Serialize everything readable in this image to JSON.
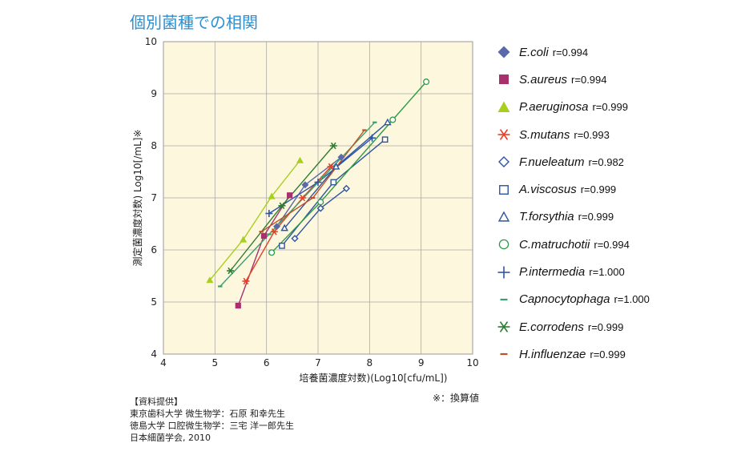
{
  "title": "個別菌種での相関",
  "note": "※：換算値",
  "source": {
    "heading": "【資料提供】",
    "lines": [
      "東京歯科大学 微生物学：石原 和幸先生",
      "徳島大学 口腔微生物学：三宅 洋一郎先生",
      "日本細菌学会, 2010"
    ]
  },
  "chart_data": {
    "type": "scatter",
    "xlabel": "培養菌濃度対数)(Log10[cfu/mL])",
    "ylabel": "測定菌濃度対数) Log10[/mL]※",
    "xlim": [
      4,
      10
    ],
    "ylim": [
      4,
      10
    ],
    "xticks": [
      4,
      5,
      6,
      7,
      8,
      9,
      10
    ],
    "yticks": [
      4,
      5,
      6,
      7,
      8,
      9,
      10
    ],
    "grid": true,
    "legend_position": "right",
    "series": [
      {
        "name": "E.coli",
        "r": "r=0.994",
        "marker": "diamond-filled",
        "color": "#5a6aa8",
        "points": [
          [
            6.2,
            6.45
          ],
          [
            6.75,
            7.25
          ],
          [
            7.45,
            7.78
          ]
        ]
      },
      {
        "name": "S.aureus",
        "r": "r=0.994",
        "marker": "square-filled",
        "color": "#a8306c",
        "points": [
          [
            5.45,
            4.93
          ],
          [
            5.95,
            6.27
          ],
          [
            6.45,
            7.05
          ]
        ]
      },
      {
        "name": "P.aeruginosa",
        "r": "r=0.999",
        "marker": "triangle-filled",
        "color": "#a8cf1d",
        "points": [
          [
            4.9,
            5.42
          ],
          [
            5.55,
            6.2
          ],
          [
            6.1,
            7.03
          ],
          [
            6.65,
            7.72
          ]
        ]
      },
      {
        "name": "S.mutans",
        "r": "r=0.993",
        "marker": "asterisk",
        "color": "#e8402a",
        "points": [
          [
            5.6,
            5.4
          ],
          [
            6.15,
            6.35
          ],
          [
            6.7,
            7.0
          ],
          [
            7.25,
            7.6
          ]
        ]
      },
      {
        "name": "F.nueleatum",
        "r": "r=0.982",
        "marker": "diamond-open",
        "color": "#2e55a0",
        "points": [
          [
            6.55,
            6.22
          ],
          [
            7.05,
            6.8
          ],
          [
            7.55,
            7.18
          ]
        ]
      },
      {
        "name": "A.viscosus",
        "r": "r=0.999",
        "marker": "square-open",
        "color": "#2e55a0",
        "points": [
          [
            6.3,
            6.08
          ],
          [
            7.3,
            7.3
          ],
          [
            8.3,
            8.12
          ]
        ]
      },
      {
        "name": "T.forsythia",
        "r": "r=0.999",
        "marker": "triangle-open",
        "color": "#2e55a0",
        "points": [
          [
            6.35,
            6.42
          ],
          [
            7.35,
            7.6
          ],
          [
            8.35,
            8.45
          ]
        ]
      },
      {
        "name": "C.matruchotii",
        "r": "r=0.994",
        "marker": "circle-open",
        "color": "#2e9a48",
        "points": [
          [
            6.1,
            5.95
          ],
          [
            7.05,
            6.92
          ],
          [
            8.45,
            8.5
          ],
          [
            9.1,
            9.23
          ]
        ]
      },
      {
        "name": "P.intermedia",
        "r": "r=1.000",
        "marker": "plus",
        "color": "#2e55a0",
        "points": [
          [
            6.05,
            6.7
          ],
          [
            7.0,
            7.3
          ],
          [
            8.05,
            8.15
          ]
        ]
      },
      {
        "name": "Capnocytophaga",
        "r": "r=1.000",
        "marker": "dash",
        "color": "#3aa070",
        "points": [
          [
            5.1,
            5.3
          ],
          [
            6.05,
            6.3
          ],
          [
            7.1,
            7.4
          ],
          [
            8.1,
            8.45
          ]
        ]
      },
      {
        "name": "E.corrodens",
        "r": "r=0.999",
        "marker": "asterisk",
        "color": "#2e7d32",
        "points": [
          [
            5.3,
            5.6
          ],
          [
            6.3,
            6.85
          ],
          [
            7.3,
            8.0
          ]
        ]
      },
      {
        "name": "H.influenzae",
        "r": "r=0.999",
        "marker": "dash",
        "color": "#c0502a",
        "points": [
          [
            5.9,
            6.35
          ],
          [
            6.9,
            7.0
          ],
          [
            7.9,
            8.3
          ]
        ]
      }
    ]
  }
}
